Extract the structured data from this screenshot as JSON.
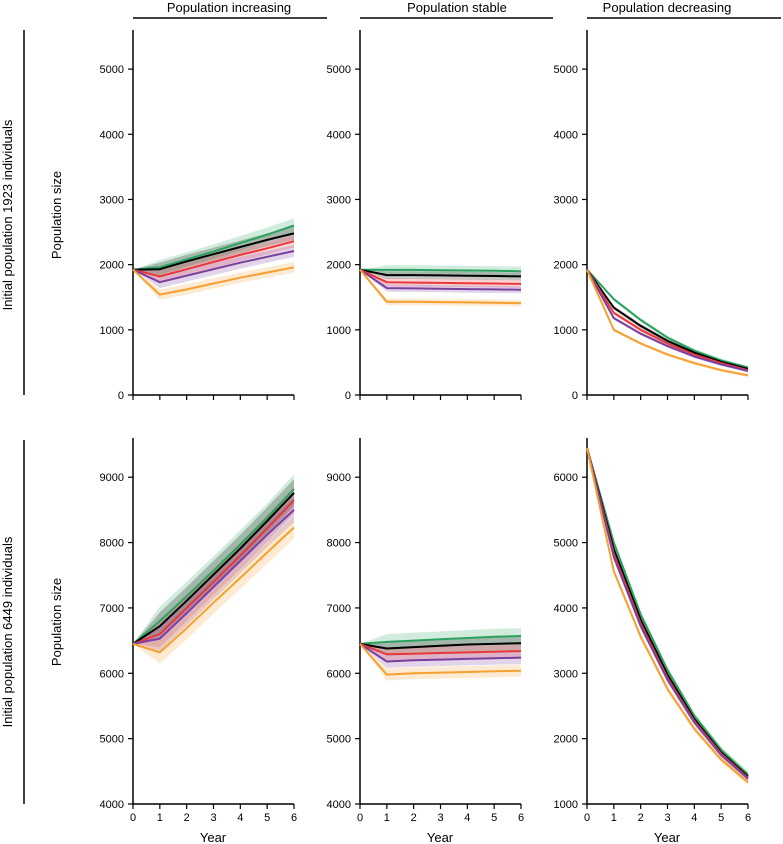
{
  "figure": {
    "column_titles": [
      "Population increasing",
      "Population stable",
      "Population decreasing"
    ],
    "row_titles": [
      "Initial population 1923 individuals",
      "Initial population 6449 individuals"
    ],
    "ylabel": "Population size",
    "xlabel": "Year"
  },
  "chart_data": [
    {
      "type": "line",
      "panel": "top-left",
      "x": [
        0,
        1,
        2,
        3,
        4,
        5,
        6
      ],
      "xlim": [
        0,
        6
      ],
      "xticks": [
        0,
        1,
        2,
        3,
        4,
        5,
        6
      ],
      "ylim": [
        0,
        5600
      ],
      "yticks": [
        0,
        1000,
        2000,
        3000,
        4000,
        5000
      ],
      "series": [
        {
          "color": "#2ca25f",
          "values": [
            1923,
            1960,
            2080,
            2200,
            2330,
            2460,
            2600
          ],
          "band": 110
        },
        {
          "color": "#000000",
          "values": [
            1923,
            1930,
            2050,
            2160,
            2270,
            2380,
            2480
          ],
          "band": 100
        },
        {
          "color": "#e8383b",
          "values": [
            1923,
            1820,
            1930,
            2040,
            2150,
            2250,
            2360
          ],
          "band": 95
        },
        {
          "color": "#7b3f9e",
          "values": [
            1923,
            1730,
            1830,
            1930,
            2030,
            2120,
            2210
          ],
          "band": 90
        },
        {
          "color": "#f5a030",
          "values": [
            1923,
            1540,
            1620,
            1710,
            1800,
            1880,
            1960
          ],
          "band": 80
        }
      ]
    },
    {
      "type": "line",
      "panel": "top-middle",
      "x": [
        0,
        1,
        2,
        3,
        4,
        5,
        6
      ],
      "xlim": [
        0,
        6
      ],
      "xticks": [
        0,
        1,
        2,
        3,
        4,
        5,
        6
      ],
      "ylim": [
        0,
        5600
      ],
      "yticks": [
        0,
        1000,
        2000,
        3000,
        4000,
        5000
      ],
      "series": [
        {
          "color": "#2ca25f",
          "values": [
            1923,
            1920,
            1920,
            1915,
            1910,
            1905,
            1900
          ],
          "band": 70
        },
        {
          "color": "#000000",
          "values": [
            1923,
            1840,
            1840,
            1835,
            1830,
            1825,
            1820
          ],
          "band": 60
        },
        {
          "color": "#e8383b",
          "values": [
            1923,
            1730,
            1725,
            1720,
            1715,
            1710,
            1705
          ],
          "band": 60
        },
        {
          "color": "#7b3f9e",
          "values": [
            1923,
            1640,
            1635,
            1630,
            1625,
            1620,
            1615
          ],
          "band": 55
        },
        {
          "color": "#f5a030",
          "values": [
            1923,
            1430,
            1430,
            1425,
            1420,
            1415,
            1410
          ],
          "band": 50
        }
      ]
    },
    {
      "type": "line",
      "panel": "top-right",
      "x": [
        0,
        1,
        2,
        3,
        4,
        5,
        6
      ],
      "xlim": [
        0,
        6
      ],
      "xticks": [
        0,
        1,
        2,
        3,
        4,
        5,
        6
      ],
      "ylim": [
        0,
        5600
      ],
      "yticks": [
        0,
        1000,
        2000,
        3000,
        4000,
        5000
      ],
      "series": [
        {
          "color": "#2ca25f",
          "values": [
            1923,
            1470,
            1150,
            880,
            680,
            530,
            420
          ],
          "band": 30
        },
        {
          "color": "#000000",
          "values": [
            1923,
            1340,
            1060,
            830,
            650,
            510,
            400
          ],
          "band": 30
        },
        {
          "color": "#e8383b",
          "values": [
            1923,
            1260,
            1000,
            790,
            620,
            490,
            380
          ],
          "band": 30
        },
        {
          "color": "#7b3f9e",
          "values": [
            1923,
            1180,
            940,
            750,
            590,
            470,
            370
          ],
          "band": 25
        },
        {
          "color": "#f5a030",
          "values": [
            1923,
            1000,
            790,
            620,
            490,
            380,
            300
          ],
          "band": 25
        }
      ]
    },
    {
      "type": "line",
      "panel": "bottom-left",
      "x": [
        0,
        1,
        2,
        3,
        4,
        5,
        6
      ],
      "xlim": [
        0,
        6
      ],
      "xticks": [
        0,
        1,
        2,
        3,
        4,
        5,
        6
      ],
      "ylim": [
        4000,
        9600
      ],
      "yticks": [
        4000,
        5000,
        6000,
        7000,
        8000,
        9000
      ],
      "series": [
        {
          "color": "#2ca25f",
          "values": [
            6449,
            6800,
            7180,
            7570,
            7970,
            8380,
            8820
          ],
          "band": 220
        },
        {
          "color": "#000000",
          "values": [
            6449,
            6720,
            7110,
            7510,
            7910,
            8330,
            8760
          ],
          "band": 210
        },
        {
          "color": "#e8383b",
          "values": [
            6449,
            6600,
            7000,
            7400,
            7800,
            8220,
            8650
          ],
          "band": 200
        },
        {
          "color": "#7b3f9e",
          "values": [
            6449,
            6530,
            6920,
            7320,
            7720,
            8120,
            8500
          ],
          "band": 190
        },
        {
          "color": "#f5a030",
          "values": [
            6449,
            6320,
            6690,
            7080,
            7460,
            7850,
            8230
          ],
          "band": 170
        }
      ]
    },
    {
      "type": "line",
      "panel": "bottom-middle",
      "x": [
        0,
        1,
        2,
        3,
        4,
        5,
        6
      ],
      "xlim": [
        0,
        6
      ],
      "xticks": [
        0,
        1,
        2,
        3,
        4,
        5,
        6
      ],
      "ylim": [
        4000,
        9600
      ],
      "yticks": [
        4000,
        5000,
        6000,
        7000,
        8000,
        9000
      ],
      "series": [
        {
          "color": "#2ca25f",
          "values": [
            6449,
            6480,
            6500,
            6520,
            6540,
            6560,
            6570
          ],
          "band": 120
        },
        {
          "color": "#000000",
          "values": [
            6449,
            6380,
            6400,
            6420,
            6440,
            6450,
            6460
          ],
          "band": 110
        },
        {
          "color": "#e8383b",
          "values": [
            6449,
            6290,
            6300,
            6310,
            6320,
            6330,
            6340
          ],
          "band": 100
        },
        {
          "color": "#7b3f9e",
          "values": [
            6449,
            6180,
            6200,
            6210,
            6220,
            6230,
            6240
          ],
          "band": 100
        },
        {
          "color": "#f5a030",
          "values": [
            6449,
            5980,
            6000,
            6010,
            6020,
            6030,
            6040
          ],
          "band": 90
        }
      ]
    },
    {
      "type": "line",
      "panel": "bottom-right",
      "x": [
        0,
        1,
        2,
        3,
        4,
        5,
        6
      ],
      "xlim": [
        0,
        6
      ],
      "xticks": [
        0,
        1,
        2,
        3,
        4,
        5,
        6
      ],
      "ylim": [
        1000,
        6600
      ],
      "yticks": [
        1000,
        2000,
        3000,
        4000,
        5000,
        6000
      ],
      "series": [
        {
          "color": "#2ca25f",
          "values": [
            6449,
            5000,
            3900,
            3050,
            2350,
            1830,
            1450
          ],
          "band": 50
        },
        {
          "color": "#000000",
          "values": [
            6449,
            4900,
            3820,
            2980,
            2300,
            1790,
            1420
          ],
          "band": 50
        },
        {
          "color": "#e8383b",
          "values": [
            6449,
            4830,
            3760,
            2930,
            2270,
            1770,
            1400
          ],
          "band": 50
        },
        {
          "color": "#7b3f9e",
          "values": [
            6449,
            4780,
            3720,
            2900,
            2250,
            1750,
            1390
          ],
          "band": 45
        },
        {
          "color": "#f5a030",
          "values": [
            6449,
            4560,
            3560,
            2760,
            2150,
            1680,
            1330
          ],
          "band": 45
        }
      ]
    }
  ]
}
